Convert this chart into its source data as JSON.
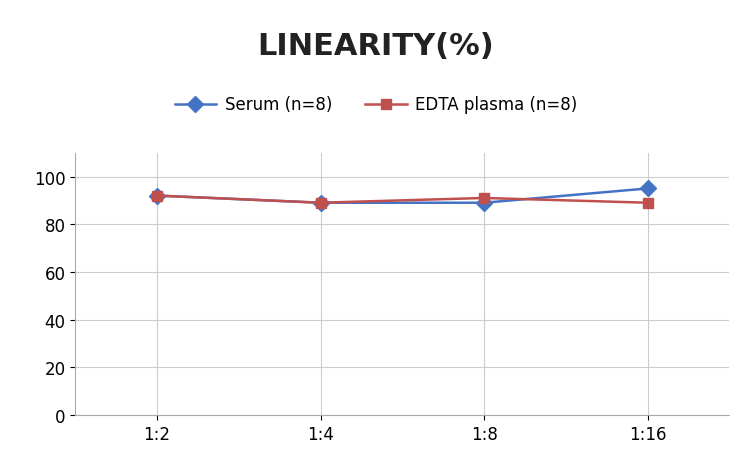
{
  "title": "LINEARITY(%)",
  "title_fontsize": 22,
  "title_fontweight": "bold",
  "x_labels": [
    "1:2",
    "1:4",
    "1:8",
    "1:16"
  ],
  "x_positions": [
    0,
    1,
    2,
    3
  ],
  "serum_values": [
    92,
    89,
    89,
    95
  ],
  "edta_values": [
    92,
    89,
    91,
    89
  ],
  "serum_label": "Serum (n=8)",
  "edta_label": "EDTA plasma (n=8)",
  "serum_color": "#4472C4",
  "edta_color": "#C0504D",
  "ylim": [
    0,
    110
  ],
  "yticks": [
    0,
    20,
    40,
    60,
    80,
    100
  ],
  "grid_color": "#CCCCCC",
  "bg_color": "#FFFFFF",
  "linewidth": 1.8,
  "marker_size_serum": 8,
  "marker_size_edta": 7,
  "tick_fontsize": 12,
  "legend_fontsize": 12
}
